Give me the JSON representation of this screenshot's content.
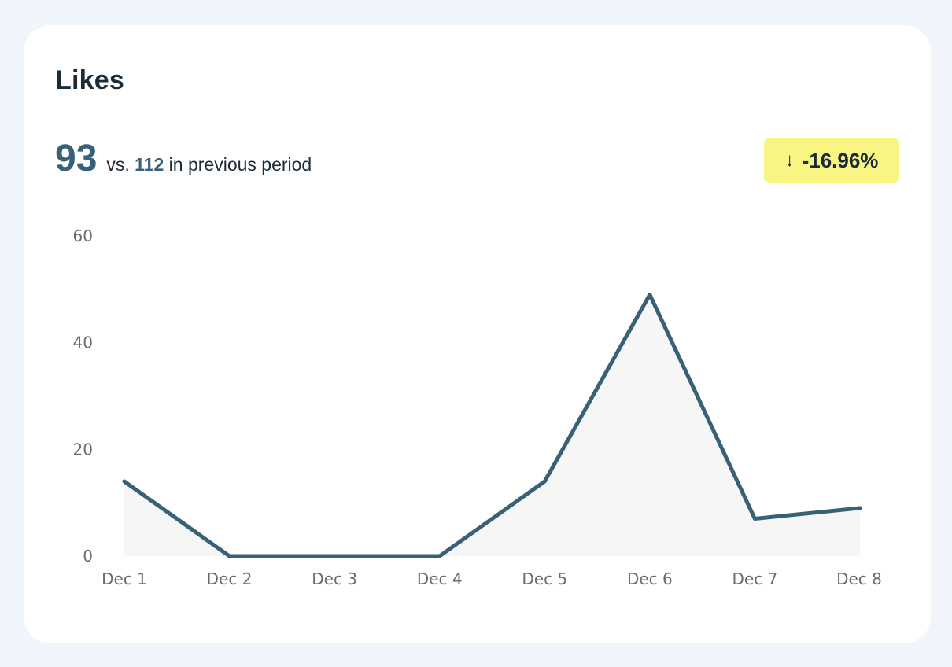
{
  "card": {
    "title": "Likes",
    "current_value": "93",
    "vs_prefix": "vs.",
    "previous_value": "112",
    "vs_suffix": "in previous period",
    "change": {
      "icon": "arrow-down-icon",
      "arrow": "↓",
      "label": "-16.96%"
    }
  },
  "colors": {
    "accent": "#386178",
    "badge_bg": "#f8f582",
    "area_fill": "#f6f6f7"
  },
  "chart_data": {
    "type": "line",
    "categories": [
      "Dec 1",
      "Dec 2",
      "Dec 3",
      "Dec 4",
      "Dec 5",
      "Dec 6",
      "Dec 7",
      "Dec 8"
    ],
    "values": [
      14,
      0,
      0,
      0,
      14,
      49,
      7,
      9
    ],
    "ylim": [
      0,
      60
    ],
    "yticks": [
      "0",
      "20",
      "40",
      "60"
    ],
    "grid": false,
    "legend": "none",
    "title": "",
    "xlabel": "",
    "ylabel": ""
  }
}
